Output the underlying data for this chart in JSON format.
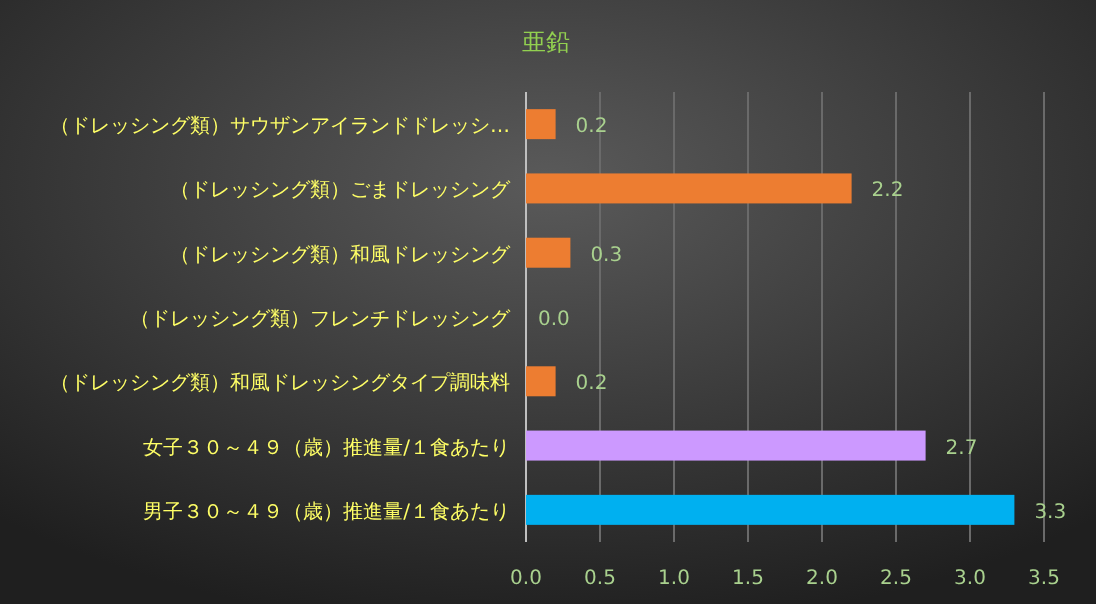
{
  "chart_data": {
    "type": "bar",
    "orientation": "horizontal",
    "title": "亜鉛",
    "categories": [
      "（ドレッシング類）サウザンアイランドドレッシ…",
      "（ドレッシング類）ごまドレッシング",
      "（ドレッシング類）和風ドレッシング",
      "（ドレッシング類）フレンチドレッシング",
      "（ドレッシング類）和風ドレッシングタイプ調味料",
      "女子３０～４９（歳）推進量/１食あたり",
      "男子３０～４９（歳）推進量/１食あたり"
    ],
    "values": [
      0.2,
      2.2,
      0.3,
      0.0,
      0.2,
      2.7,
      3.3
    ],
    "colors": [
      "#ed7d31",
      "#ed7d31",
      "#ed7d31",
      "#ed7d31",
      "#ed7d31",
      "#cc99ff",
      "#00b0f0"
    ],
    "xlim": [
      0,
      3.5
    ],
    "xticks": [
      {
        "value": 0,
        "label": "0.0"
      },
      {
        "value": 0.5,
        "label": "0.5"
      },
      {
        "value": 1,
        "label": "1.0"
      },
      {
        "value": 1.5,
        "label": "1.5"
      },
      {
        "value": 2,
        "label": "2.0"
      },
      {
        "value": 2.5,
        "label": "2.5"
      },
      {
        "value": 3,
        "label": "3.0"
      },
      {
        "value": 3.5,
        "label": "3.5"
      }
    ],
    "value_labels": [
      "0.2",
      "2.2",
      "0.3",
      "0.0",
      "0.2",
      "2.7",
      "3.3"
    ],
    "grid": "x"
  }
}
